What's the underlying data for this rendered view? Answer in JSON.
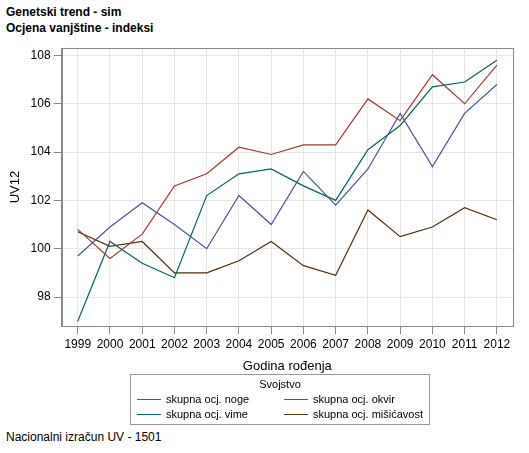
{
  "chart_data": {
    "type": "line",
    "title": "Genetski trend - sim",
    "subtitle": "Ocjena vanjštine - indeksi",
    "x_label": "Godina rođenja",
    "y_label": "UV12",
    "footnote": "Nacionalni izračun UV - 1501",
    "legend_title": "Svojstvo",
    "legend": "bottom",
    "grid": true,
    "marker": "none",
    "line_style": "solid",
    "categories": [
      "1999",
      "2000",
      "2001",
      "2002",
      "2003",
      "2004",
      "2005",
      "2006",
      "2007",
      "2008",
      "2009",
      "2010",
      "2011",
      "2012"
    ],
    "ylim": [
      96.8,
      108.3
    ],
    "yticks": [
      98,
      100,
      102,
      104,
      106,
      108
    ],
    "series": [
      {
        "name": "skupna ocj. noge",
        "color": "#445694",
        "values": [
          99.7,
          100.9,
          101.9,
          101.0,
          100.0,
          102.2,
          101.0,
          103.2,
          101.8,
          103.3,
          105.6,
          103.4,
          105.6,
          106.8
        ]
      },
      {
        "name": "skupna ocj. okvir",
        "color": "#a23a2e",
        "values": [
          100.8,
          99.6,
          100.6,
          102.6,
          103.1,
          104.2,
          103.9,
          104.3,
          104.3,
          106.2,
          105.3,
          107.2,
          106.0,
          107.6
        ]
      },
      {
        "name": "skupna ocj. vime",
        "color": "#01665e",
        "values": [
          97.0,
          100.3,
          99.4,
          98.8,
          102.2,
          103.1,
          103.3,
          102.6,
          102.0,
          104.1,
          105.1,
          106.7,
          106.9,
          107.8
        ]
      },
      {
        "name": "skupna ocj. mišićavost",
        "color": "#543005",
        "values": [
          100.7,
          100.1,
          100.3,
          99.0,
          99.0,
          99.5,
          100.3,
          99.3,
          98.9,
          101.6,
          100.5,
          100.9,
          101.7,
          101.2
        ]
      }
    ]
  }
}
